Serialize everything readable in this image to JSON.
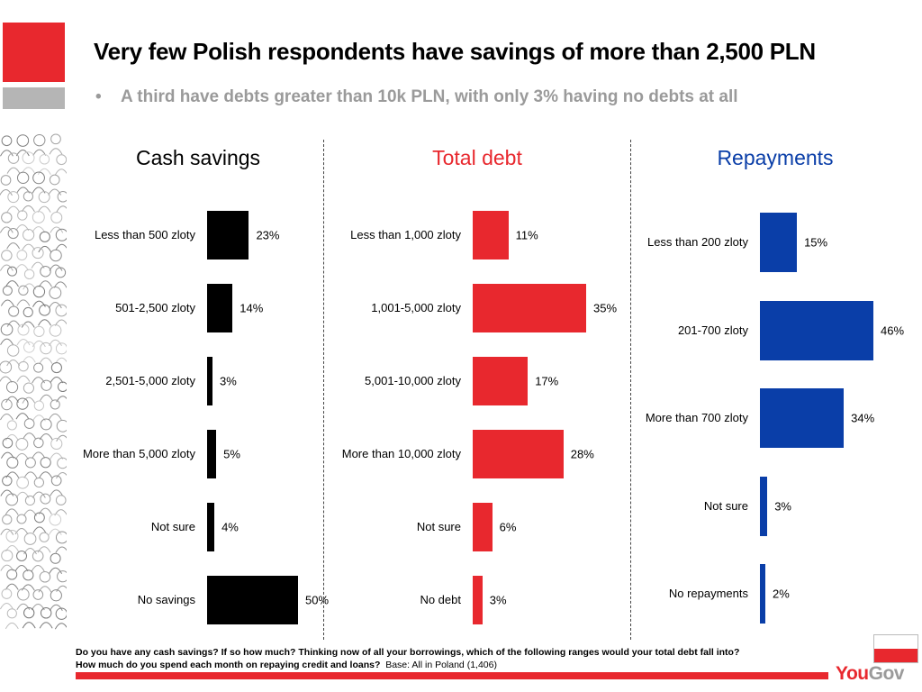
{
  "header": {
    "title": "Very few Polish respondents have savings of more than 2,500 PLN",
    "bullet": "•",
    "subtitle": "A third have debts greater than 10k PLN, with only 3% having no debts at all"
  },
  "colors": {
    "black": "#000000",
    "red": "#e8282e",
    "blue": "#0a3ea8",
    "grey": "#9a9a9a"
  },
  "chart_data": [
    {
      "type": "bar",
      "orientation": "horizontal",
      "title": "Cash savings",
      "color": "#000000",
      "categories": [
        "Less than 500 zloty",
        "501-2,500 zloty",
        "2,501-5,000 zloty",
        "More than 5,000 zloty",
        "Not sure",
        "No savings"
      ],
      "values": [
        23,
        14,
        3,
        5,
        4,
        50
      ],
      "labels": [
        "23%",
        "14%",
        "3%",
        "5%",
        "4%",
        "50%"
      ],
      "unit": "%",
      "xlim": [
        0,
        50
      ]
    },
    {
      "type": "bar",
      "orientation": "horizontal",
      "title": "Total debt",
      "color": "#e8282e",
      "categories": [
        "Less than 1,000 zloty",
        "1,001-5,000 zloty",
        "5,001-10,000 zloty",
        "More than 10,000 zloty",
        "Not sure",
        "No debt"
      ],
      "values": [
        11,
        35,
        17,
        28,
        6,
        3
      ],
      "labels": [
        "11%",
        "35%",
        "17%",
        "28%",
        "6%",
        "3%"
      ],
      "unit": "%",
      "xlim": [
        0,
        35
      ]
    },
    {
      "type": "bar",
      "orientation": "horizontal",
      "title": "Repayments",
      "color": "#0a3ea8",
      "categories": [
        "Less than 200 zloty",
        "201-700 zloty",
        "More than 700 zloty",
        "Not sure",
        "No repayments"
      ],
      "values": [
        15,
        46,
        34,
        3,
        2
      ],
      "labels": [
        "15%",
        "46%",
        "34%",
        "3%",
        "2%"
      ],
      "unit": "%",
      "xlim": [
        0,
        46
      ]
    }
  ],
  "footnote": {
    "question": "Do you have any cash savings? If so how much? Thinking now of all your borrowings, which of the following ranges would your total debt fall into? How much do you spend each month on repaying credit and loans?",
    "base": "Base: All in Poland (1,406)"
  },
  "logo": {
    "you": "You",
    "gov": "Gov"
  }
}
